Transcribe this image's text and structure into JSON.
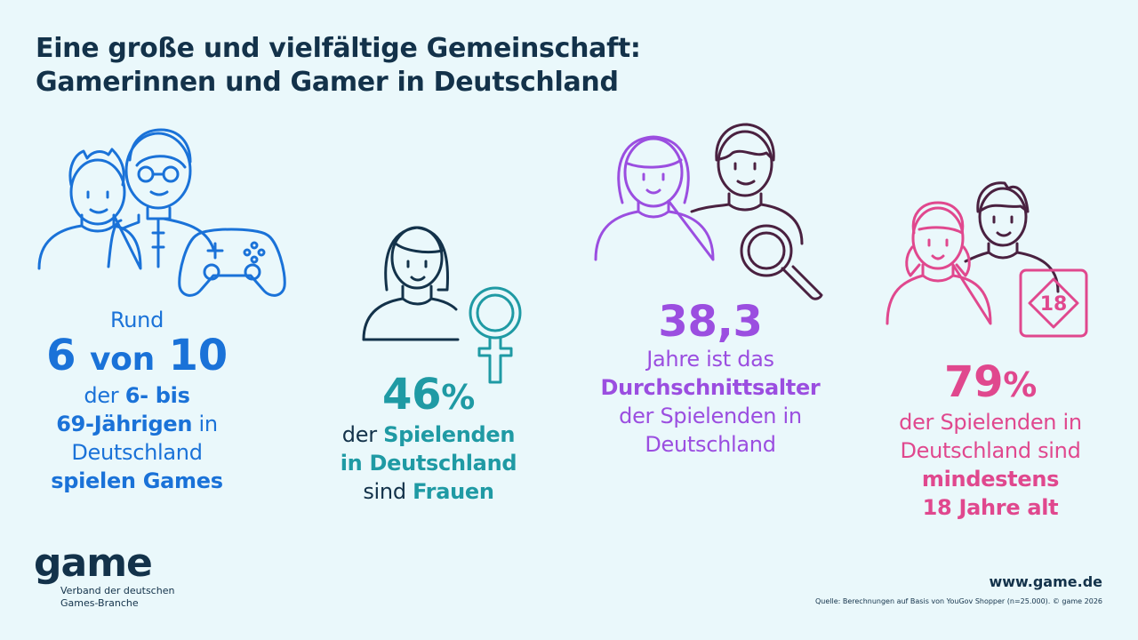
{
  "title": {
    "line1": "Eine große und vielfältige Gemeinschaft:",
    "line2": "Gamerinnen und Gamer in Deutschland"
  },
  "stat1": {
    "prefix": "Rund",
    "num1": "6",
    "word": "von",
    "num2": "10",
    "line3_a": "der ",
    "line3_b": "6- bis",
    "line4_a": "69-Jährigen",
    "line4_b": " in",
    "line5": "Deutschland",
    "line6": "spielen Games"
  },
  "stat2": {
    "value": "46",
    "unit": "%",
    "line1_a": "der ",
    "line1_b": "Spielenden",
    "line2": "in Deutschland",
    "line3_a": "sind ",
    "line3_b": "Frauen"
  },
  "stat3": {
    "value": "38,3",
    "line1": "Jahre ist das",
    "line2": "Durchschnittsalter",
    "line3": "der Spielenden in",
    "line4": "Deutschland"
  },
  "stat4": {
    "value": "79",
    "unit": "%",
    "line1": "der Spielenden in",
    "line2": "Deutschland sind",
    "line3": "mindestens",
    "line4": "18 Jahre alt",
    "badge": "18"
  },
  "footer": {
    "logo_word": "game",
    "logo_sub1": "Verband der deutschen",
    "logo_sub2": "Games-Branche",
    "website": "www.game.de",
    "source": "Quelle: Berechnungen auf Basis von YouGov Shopper (n=25.000). © game 2026"
  },
  "colors": {
    "background": "#eaf8fb",
    "title": "#13324a",
    "blue": "#1a72d8",
    "teal": "#1f9aa4",
    "purple": "#9b4ee0",
    "pink": "#e0488e",
    "outline_dark": "#4a2140"
  },
  "icons": [
    "family-icon",
    "gamepad-icon",
    "woman-icon",
    "female-symbol-icon",
    "couple-icon",
    "magnifier-icon",
    "adults-icon",
    "age-18-badge-icon"
  ]
}
